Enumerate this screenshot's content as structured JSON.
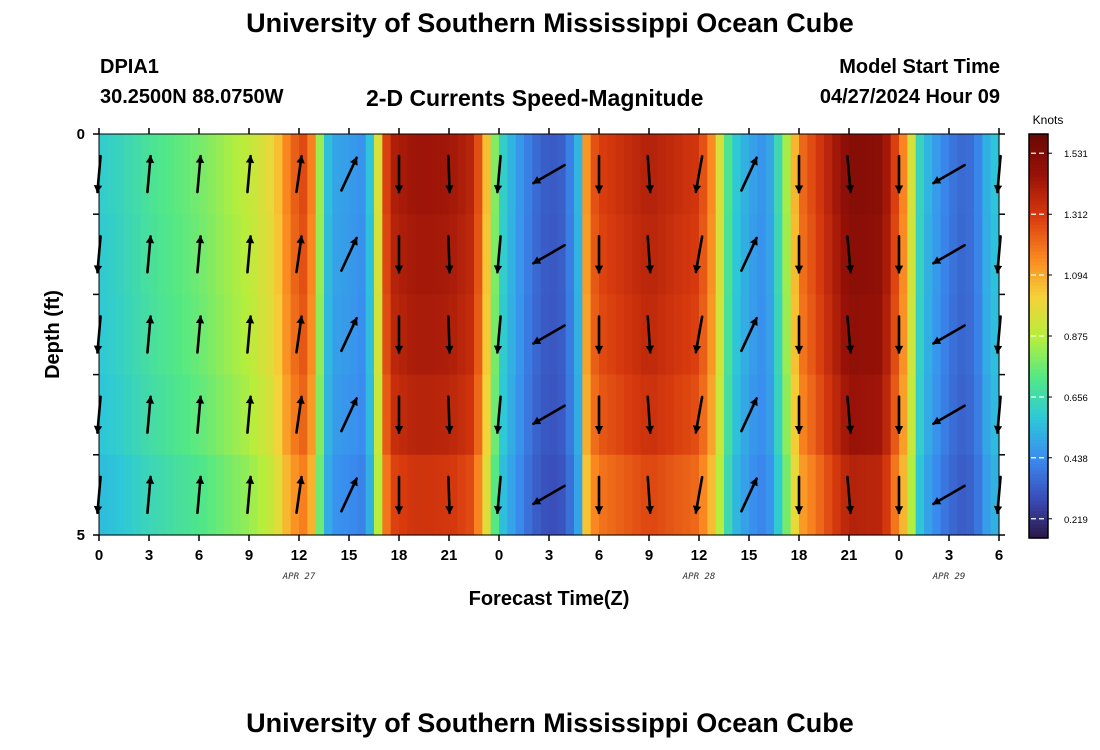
{
  "page": {
    "title_top": "University of Southern Mississippi Ocean Cube",
    "title_bottom": "University of Southern Mississippi Ocean Cube",
    "station_id": "DPIA1",
    "station_coords": "30.2500N  88.0750W",
    "plot_title": "2-D Currents Speed-Magnitude",
    "model_start_label": "Model Start Time",
    "model_start_value": "04/27/2024 Hour 09"
  },
  "chart_data": {
    "type": "heatmap",
    "title": "2-D Currents Speed-Magnitude",
    "xlabel": "Forecast Time(Z)",
    "ylabel": "Depth (ft)",
    "x_range_hours": [
      0,
      54
    ],
    "y_range_ft": [
      0,
      5
    ],
    "x_ticks": [
      {
        "h": 0,
        "label": "0"
      },
      {
        "h": 3,
        "label": "3"
      },
      {
        "h": 6,
        "label": "6"
      },
      {
        "h": 9,
        "label": "9"
      },
      {
        "h": 12,
        "label": "12"
      },
      {
        "h": 15,
        "label": "15"
      },
      {
        "h": 18,
        "label": "18"
      },
      {
        "h": 21,
        "label": "21"
      },
      {
        "h": 24,
        "label": "0"
      },
      {
        "h": 27,
        "label": "3"
      },
      {
        "h": 30,
        "label": "6"
      },
      {
        "h": 33,
        "label": "9"
      },
      {
        "h": 36,
        "label": "12"
      },
      {
        "h": 39,
        "label": "15"
      },
      {
        "h": 42,
        "label": "18"
      },
      {
        "h": 45,
        "label": "21"
      },
      {
        "h": 48,
        "label": "0"
      },
      {
        "h": 51,
        "label": "3"
      },
      {
        "h": 54,
        "label": "6"
      }
    ],
    "y_tick_labels": [
      {
        "depth": 0,
        "label": "0"
      },
      {
        "depth": 5,
        "label": "5"
      }
    ],
    "date_labels": [
      {
        "h": 12,
        "label": "APR 27"
      },
      {
        "h": 36,
        "label": "APR 28"
      },
      {
        "h": 51,
        "label": "APR 29"
      }
    ],
    "speed_profile_knots": [
      [
        0,
        0.6
      ],
      [
        1.5,
        0.64
      ],
      [
        3,
        0.7
      ],
      [
        6,
        0.78
      ],
      [
        9,
        0.9
      ],
      [
        10.5,
        1.0
      ],
      [
        11.5,
        1.22
      ],
      [
        12.5,
        1.3
      ],
      [
        13,
        1.05
      ],
      [
        13.5,
        0.62
      ],
      [
        14,
        0.5
      ],
      [
        15,
        0.48
      ],
      [
        16,
        0.45
      ],
      [
        16.5,
        0.7
      ],
      [
        17,
        1.2
      ],
      [
        17.5,
        1.4
      ],
      [
        19,
        1.45
      ],
      [
        21,
        1.44
      ],
      [
        22.5,
        1.38
      ],
      [
        23.5,
        0.95
      ],
      [
        24,
        0.65
      ],
      [
        25,
        0.5
      ],
      [
        26,
        0.38
      ],
      [
        27,
        0.32
      ],
      [
        28,
        0.35
      ],
      [
        28.8,
        0.55
      ],
      [
        29.3,
        1.2
      ],
      [
        30,
        1.3
      ],
      [
        33,
        1.4
      ],
      [
        36,
        1.32
      ],
      [
        37,
        1.1
      ],
      [
        37.5,
        0.8
      ],
      [
        38,
        0.62
      ],
      [
        39,
        0.5
      ],
      [
        40,
        0.45
      ],
      [
        40.5,
        0.55
      ],
      [
        41.5,
        0.95
      ],
      [
        42,
        1.2
      ],
      [
        43,
        1.3
      ],
      [
        45,
        1.52
      ],
      [
        47,
        1.5
      ],
      [
        48.5,
        1.1
      ],
      [
        49.3,
        0.6
      ],
      [
        50,
        0.5
      ],
      [
        51,
        0.4
      ],
      [
        52,
        0.35
      ],
      [
        53,
        0.45
      ],
      [
        53.5,
        0.6
      ],
      [
        54,
        0.55
      ]
    ],
    "depth_factors": [
      1.0,
      0.99,
      0.98,
      0.96,
      0.92
    ],
    "vectors": {
      "hours": [
        0,
        3,
        6,
        9,
        12,
        15,
        18,
        21,
        24,
        27,
        30,
        33,
        36,
        39,
        42,
        45,
        48,
        51,
        54
      ],
      "depths_ft": [
        0,
        1,
        2,
        3,
        4
      ],
      "direction_deg": [
        185,
        5,
        5,
        5,
        8,
        25,
        180,
        178,
        185,
        240,
        180,
        176,
        190,
        25,
        180,
        175,
        180,
        240,
        185
      ],
      "speed_knots": [
        0.6,
        0.7,
        0.78,
        0.9,
        1.25,
        0.48,
        1.45,
        1.44,
        0.65,
        0.33,
        1.3,
        1.4,
        1.32,
        0.5,
        1.2,
        1.52,
        1.1,
        0.4,
        0.55
      ]
    },
    "colorbar": {
      "units": "Knots",
      "min": 0.15,
      "max": 1.6,
      "ticks": [
        1.531,
        1.312,
        1.094,
        0.875,
        0.656,
        0.438,
        0.219
      ],
      "tick_labels": [
        "1.531",
        "1.312",
        "1.094",
        "0.875",
        "0.656",
        "0.438",
        "0.219"
      ]
    },
    "colormap": [
      "#2b1541",
      "#3a4cb8",
      "#3a8cf0",
      "#2dc8d8",
      "#52e886",
      "#b6ee3c",
      "#f6d238",
      "#fa8620",
      "#d83a0e",
      "#9a1208",
      "#6a0804"
    ]
  }
}
